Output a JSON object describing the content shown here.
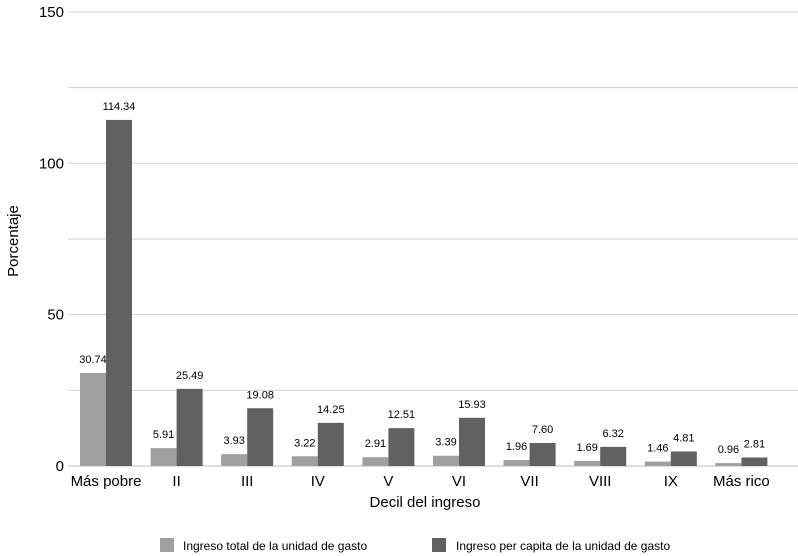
{
  "chart_data": {
    "type": "bar",
    "xlabel": "Decil del ingreso",
    "ylabel": "Porcentaje",
    "ylim": [
      0,
      150
    ],
    "yticks": [
      0,
      50,
      100,
      150
    ],
    "grid": true,
    "legend_placement": "bottom",
    "categories": [
      "Más pobre",
      "II",
      "III",
      "IV",
      "V",
      "VI",
      "VII",
      "VIII",
      "IX",
      "Más rico"
    ],
    "series": [
      {
        "name": "Ingreso total de la unidad de gasto",
        "color": "#a0a0a0",
        "values": [
          30.74,
          5.91,
          3.93,
          3.22,
          2.91,
          3.39,
          1.96,
          1.69,
          1.46,
          0.96
        ],
        "labels": [
          "30.74",
          "5.91",
          "3.93",
          "3.22",
          "2.91",
          "3.39",
          "1.96",
          "1.69",
          "1.46",
          "0.96"
        ]
      },
      {
        "name": "Ingreso per capita de la unidad de gasto",
        "color": "#616161",
        "values": [
          114.34,
          25.49,
          19.08,
          14.25,
          12.51,
          15.93,
          7.6,
          6.32,
          4.81,
          2.81
        ],
        "labels": [
          "114.34",
          "25.49",
          "19.08",
          "14.25",
          "12.51",
          "15.93",
          "7.60",
          "6.32",
          "4.81",
          "2.81"
        ]
      }
    ]
  }
}
